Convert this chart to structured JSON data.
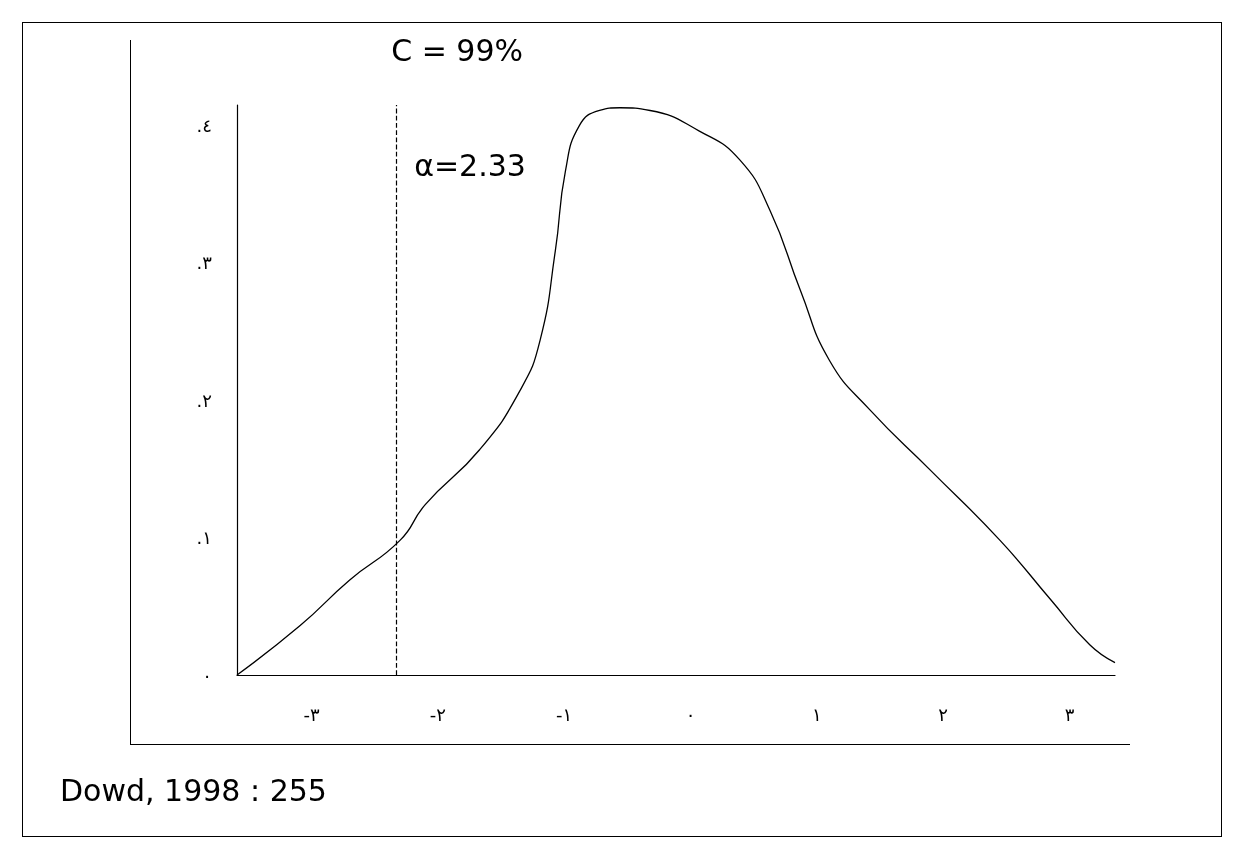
{
  "chart_data": {
    "type": "line",
    "annotations": [
      "C = 99%",
      "α=2.33",
      "Dowd, 1998 : 255"
    ],
    "series": [
      {
        "color": "#000000",
        "x": [
          -3.59,
          -3.09,
          -2.7,
          -2.3,
          -2.1,
          -1.67,
          -1.35,
          -1.19,
          -1.07,
          -0.99,
          -0.88,
          -0.72,
          -0.56,
          -0.32,
          0.07,
          0.39,
          0.63,
          0.87,
          1.1,
          1.42,
          1.9,
          2.45,
          2.85,
          3.16,
          3.36
        ],
        "values": [
          0,
          0.036,
          0.069,
          0.098,
          0.124,
          0.164,
          0.207,
          0.244,
          0.309,
          0.367,
          0.4,
          0.411,
          0.413,
          0.411,
          0.396,
          0.375,
          0.338,
          0.28,
          0.229,
          0.193,
          0.149,
          0.098,
          0.055,
          0.022,
          0.009
        ]
      }
    ],
    "xlim": [
      -3.59,
      3.36
    ],
    "xticks": [
      {
        "value": -3,
        "label": "-٣"
      },
      {
        "value": -2,
        "label": "-٢"
      },
      {
        "value": -1,
        "label": "-١"
      },
      {
        "value": 0,
        "label": "٠"
      },
      {
        "value": 1,
        "label": "١"
      },
      {
        "value": 2,
        "label": "٢"
      },
      {
        "value": 3,
        "label": "٣"
      }
    ],
    "ylim": [
      0,
      0.415
    ],
    "yticks": [
      {
        "value": 0,
        "label": "٠"
      },
      {
        "value": 0.1,
        "label": ".١"
      },
      {
        "value": 0.2,
        "label": ".٢"
      },
      {
        "value": 0.3,
        "label": ".٣"
      },
      {
        "value": 0.4,
        "label": ".٤"
      }
    ],
    "ref_lines": [
      {
        "axis": "x",
        "value": -2.33,
        "line_style": "dashed",
        "color": "#000000"
      }
    ],
    "marker": "none",
    "grid": false
  }
}
